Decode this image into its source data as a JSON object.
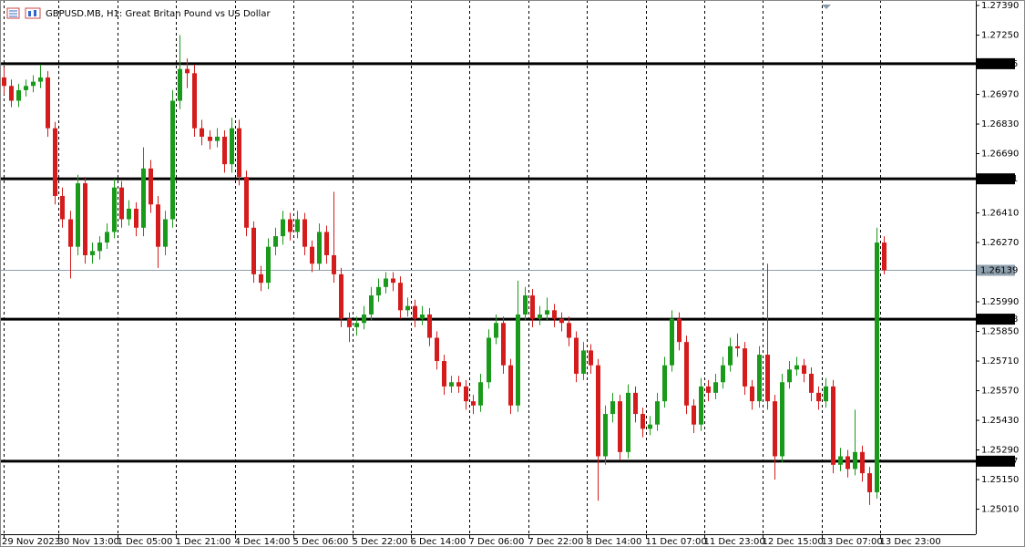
{
  "chart_data": {
    "type": "candlestick",
    "title": "GBPUSD.MB, H1:  Great Britan Pound vs US Dollar",
    "up_color": "#1a9a1a",
    "down_color": "#d41c1c",
    "ylim": [
      1.24896,
      1.27416
    ],
    "xlim": [
      -0.5,
      132.5
    ],
    "yticks": [
      {
        "value": 1.2739,
        "label": "1.27390"
      },
      {
        "value": 1.2725,
        "label": "1.27250"
      },
      {
        "value": 1.2697,
        "label": "1.26970"
      },
      {
        "value": 1.2683,
        "label": "1.26830"
      },
      {
        "value": 1.2669,
        "label": "1.26690"
      },
      {
        "value": 1.2641,
        "label": "1.26410"
      },
      {
        "value": 1.2627,
        "label": "1.26270"
      },
      {
        "value": 1.2599,
        "label": "1.25990"
      },
      {
        "value": 1.2585,
        "label": "1.25850"
      },
      {
        "value": 1.2571,
        "label": "1.25710"
      },
      {
        "value": 1.2557,
        "label": "1.25570"
      },
      {
        "value": 1.2543,
        "label": "1.25430"
      },
      {
        "value": 1.2529,
        "label": "1.25290"
      },
      {
        "value": 1.2515,
        "label": "1.25150"
      },
      {
        "value": 1.2501,
        "label": "1.25010"
      }
    ],
    "xticks": [
      {
        "value": 0,
        "label": "29 Nov 2023"
      },
      {
        "value": 7.5,
        "label": "30 Nov 13:00"
      },
      {
        "value": 15.5,
        "label": "1 Dec 05:00"
      },
      {
        "value": 23.5,
        "label": "1 Dec 21:00"
      },
      {
        "value": 31.5,
        "label": "4 Dec 14:00"
      },
      {
        "value": 39.5,
        "label": "5 Dec 06:00"
      },
      {
        "value": 47.5,
        "label": "5 Dec 22:00"
      },
      {
        "value": 55.5,
        "label": "6 Dec 14:00"
      },
      {
        "value": 63.5,
        "label": "7 Dec 06:00"
      },
      {
        "value": 71.5,
        "label": "7 Dec 22:00"
      },
      {
        "value": 79.5,
        "label": "8 Dec 14:00"
      },
      {
        "value": 87.5,
        "label": "11 Dec 07:00"
      },
      {
        "value": 95.5,
        "label": "11 Dec 23:00"
      },
      {
        "value": 103.5,
        "label": "12 Dec 15:00"
      },
      {
        "value": 111.5,
        "label": "13 Dec 07:00"
      },
      {
        "value": 119.5,
        "label": "13 Dec 23:00"
      }
    ],
    "levels": [
      1.27115,
      1.26571,
      1.25908,
      1.25237
    ],
    "current_price": 1.26139,
    "candles": [
      [
        1.2705,
        1.271,
        1.2697,
        1.2701
      ],
      [
        1.2701,
        1.2704,
        1.2691,
        1.2694
      ],
      [
        1.2694,
        1.2702,
        1.2691,
        1.2699
      ],
      [
        1.2699,
        1.2704,
        1.2696,
        1.2701
      ],
      [
        1.2701,
        1.2706,
        1.2698,
        1.2703
      ],
      [
        1.2703,
        1.2711,
        1.27,
        1.2705
      ],
      [
        1.2705,
        1.2708,
        1.2677,
        1.2681
      ],
      [
        1.2681,
        1.2684,
        1.2645,
        1.2649
      ],
      [
        1.2649,
        1.2653,
        1.2634,
        1.2638
      ],
      [
        1.2638,
        1.2642,
        1.261,
        1.2625
      ],
      [
        1.2625,
        1.2659,
        1.2621,
        1.2655
      ],
      [
        1.2655,
        1.2658,
        1.2617,
        1.2621
      ],
      [
        1.2621,
        1.2627,
        1.2617,
        1.2623
      ],
      [
        1.2623,
        1.263,
        1.2619,
        1.2627
      ],
      [
        1.2627,
        1.2636,
        1.2624,
        1.2632
      ],
      [
        1.2632,
        1.2657,
        1.2629,
        1.2653
      ],
      [
        1.2653,
        1.2656,
        1.2634,
        1.2638
      ],
      [
        1.2638,
        1.2647,
        1.2635,
        1.2643
      ],
      [
        1.2643,
        1.2646,
        1.263,
        1.2634
      ],
      [
        1.2634,
        1.2672,
        1.263,
        1.2662
      ],
      [
        1.2662,
        1.2666,
        1.2641,
        1.2645
      ],
      [
        1.2645,
        1.2649,
        1.2615,
        1.2625
      ],
      [
        1.2625,
        1.2642,
        1.2621,
        1.2638
      ],
      [
        1.2638,
        1.2699,
        1.2634,
        1.2694
      ],
      [
        1.2694,
        1.2725,
        1.269,
        1.2709
      ],
      [
        1.2709,
        1.2714,
        1.27,
        1.2707
      ],
      [
        1.2707,
        1.2711,
        1.2677,
        1.2681
      ],
      [
        1.2681,
        1.2685,
        1.2673,
        1.2677
      ],
      [
        1.2677,
        1.268,
        1.2671,
        1.2675
      ],
      [
        1.2675,
        1.2681,
        1.2672,
        1.2677
      ],
      [
        1.2677,
        1.268,
        1.266,
        1.2664
      ],
      [
        1.2664,
        1.2686,
        1.266,
        1.2681
      ],
      [
        1.2681,
        1.2685,
        1.2654,
        1.2658
      ],
      [
        1.2658,
        1.2661,
        1.263,
        1.2634
      ],
      [
        1.2634,
        1.2637,
        1.2608,
        1.2612
      ],
      [
        1.2612,
        1.2616,
        1.2604,
        1.2608
      ],
      [
        1.2608,
        1.2629,
        1.2605,
        1.2625
      ],
      [
        1.2625,
        1.2634,
        1.2621,
        1.263
      ],
      [
        1.263,
        1.2642,
        1.2626,
        1.2638
      ],
      [
        1.2638,
        1.2641,
        1.2628,
        1.2632
      ],
      [
        1.2632,
        1.2642,
        1.2629,
        1.2638
      ],
      [
        1.2638,
        1.2641,
        1.2621,
        1.2625
      ],
      [
        1.2625,
        1.2628,
        1.2613,
        1.2617
      ],
      [
        1.2617,
        1.2636,
        1.2614,
        1.2632
      ],
      [
        1.2632,
        1.2635,
        1.2617,
        1.2621
      ],
      [
        1.2621,
        1.2651,
        1.2608,
        1.2612
      ],
      [
        1.2612,
        1.2615,
        1.2587,
        1.2591
      ],
      [
        1.2591,
        1.2594,
        1.258,
        1.2587
      ],
      [
        1.2587,
        1.2592,
        1.2583,
        1.2589
      ],
      [
        1.2589,
        1.2597,
        1.2586,
        1.2593
      ],
      [
        1.2593,
        1.2606,
        1.259,
        1.2602
      ],
      [
        1.2602,
        1.261,
        1.2599,
        1.2606
      ],
      [
        1.2606,
        1.2613,
        1.2603,
        1.261
      ],
      [
        1.261,
        1.2613,
        1.2604,
        1.2608
      ],
      [
        1.2608,
        1.2611,
        1.2591,
        1.2595
      ],
      [
        1.2595,
        1.2601,
        1.2592,
        1.2597
      ],
      [
        1.2597,
        1.26,
        1.2587,
        1.2591
      ],
      [
        1.2591,
        1.2597,
        1.2588,
        1.2593
      ],
      [
        1.2593,
        1.2596,
        1.2578,
        1.2582
      ],
      [
        1.2582,
        1.2585,
        1.2567,
        1.2571
      ],
      [
        1.2571,
        1.2574,
        1.2555,
        1.2559
      ],
      [
        1.2559,
        1.2564,
        1.2556,
        1.2561
      ],
      [
        1.2561,
        1.2564,
        1.2556,
        1.2559
      ],
      [
        1.2559,
        1.2562,
        1.2548,
        1.2552
      ],
      [
        1.2552,
        1.2555,
        1.2546,
        1.255
      ],
      [
        1.255,
        1.2565,
        1.2547,
        1.2561
      ],
      [
        1.2561,
        1.2586,
        1.2558,
        1.2582
      ],
      [
        1.2582,
        1.2593,
        1.2579,
        1.2589
      ],
      [
        1.2589,
        1.2592,
        1.2565,
        1.2569
      ],
      [
        1.2569,
        1.2572,
        1.2546,
        1.255
      ],
      [
        1.255,
        1.2609,
        1.2547,
        1.2593
      ],
      [
        1.2593,
        1.2606,
        1.259,
        1.2602
      ],
      [
        1.2602,
        1.2605,
        1.2587,
        1.2591
      ],
      [
        1.2591,
        1.2597,
        1.2588,
        1.2593
      ],
      [
        1.2593,
        1.2601,
        1.259,
        1.2595
      ],
      [
        1.2595,
        1.2598,
        1.2587,
        1.2591
      ],
      [
        1.2591,
        1.2594,
        1.2585,
        1.2589
      ],
      [
        1.2589,
        1.2592,
        1.2578,
        1.2582
      ],
      [
        1.2582,
        1.2585,
        1.2561,
        1.2565
      ],
      [
        1.2565,
        1.258,
        1.2562,
        1.2576
      ],
      [
        1.2576,
        1.2579,
        1.2565,
        1.2569
      ],
      [
        1.2569,
        1.2572,
        1.2505,
        1.2526
      ],
      [
        1.2526,
        1.255,
        1.2522,
        1.2546
      ],
      [
        1.2546,
        1.2556,
        1.2542,
        1.2552
      ],
      [
        1.2552,
        1.2555,
        1.2524,
        1.2528
      ],
      [
        1.2528,
        1.256,
        1.2525,
        1.2556
      ],
      [
        1.2556,
        1.2559,
        1.2542,
        1.2546
      ],
      [
        1.2546,
        1.2549,
        1.2535,
        1.2539
      ],
      [
        1.2539,
        1.2545,
        1.2536,
        1.2541
      ],
      [
        1.2541,
        1.2556,
        1.2538,
        1.2552
      ],
      [
        1.2552,
        1.2573,
        1.2549,
        1.2569
      ],
      [
        1.2569,
        1.2595,
        1.2566,
        1.2591
      ],
      [
        1.2591,
        1.2594,
        1.2576,
        1.258
      ],
      [
        1.258,
        1.2583,
        1.2546,
        1.255
      ],
      [
        1.255,
        1.2553,
        1.2537,
        1.2541
      ],
      [
        1.2541,
        1.2563,
        1.2538,
        1.2559
      ],
      [
        1.2559,
        1.2562,
        1.2552,
        1.2556
      ],
      [
        1.2556,
        1.2565,
        1.2553,
        1.2561
      ],
      [
        1.2561,
        1.2573,
        1.2558,
        1.2569
      ],
      [
        1.2569,
        1.2582,
        1.2566,
        1.2578
      ],
      [
        1.2578,
        1.2584,
        1.2573,
        1.2577
      ],
      [
        1.2577,
        1.258,
        1.2555,
        1.2559
      ],
      [
        1.2559,
        1.2562,
        1.2548,
        1.2552
      ],
      [
        1.2552,
        1.2578,
        1.2549,
        1.2574
      ],
      [
        1.2574,
        1.2617,
        1.2548,
        1.2552
      ],
      [
        1.2552,
        1.2555,
        1.2515,
        1.2526
      ],
      [
        1.2526,
        1.2565,
        1.2523,
        1.2561
      ],
      [
        1.2561,
        1.2571,
        1.2558,
        1.2567
      ],
      [
        1.2567,
        1.2573,
        1.2564,
        1.2569
      ],
      [
        1.2569,
        1.2572,
        1.2561,
        1.2565
      ],
      [
        1.2565,
        1.2568,
        1.2552,
        1.2556
      ],
      [
        1.2556,
        1.2559,
        1.2548,
        1.2552
      ],
      [
        1.2552,
        1.2563,
        1.2549,
        1.2559
      ],
      [
        1.2559,
        1.2562,
        1.2518,
        1.2522
      ],
      [
        1.2522,
        1.253,
        1.2519,
        1.2526
      ],
      [
        1.2526,
        1.2529,
        1.2516,
        1.252
      ],
      [
        1.252,
        1.2548,
        1.2517,
        1.2528
      ],
      [
        1.2528,
        1.2531,
        1.2514,
        1.2518
      ],
      [
        1.2518,
        1.2521,
        1.2503,
        1.2509
      ],
      [
        1.2509,
        1.2634,
        1.2506,
        1.2627
      ],
      [
        1.2627,
        1.263,
        1.2612,
        1.26139
      ]
    ]
  }
}
